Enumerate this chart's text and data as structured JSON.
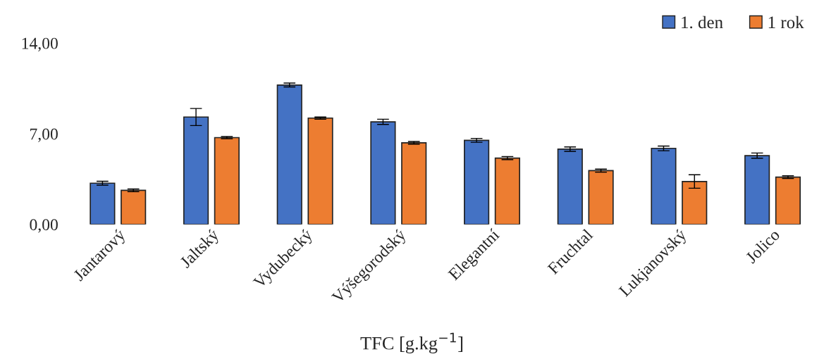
{
  "chart_data": {
    "type": "bar",
    "xlabel": "TFC [g.kg$^{−1}$]",
    "categories": [
      "Jantarový",
      "Jaltský",
      "Vydubecký",
      "Výšegorodský",
      "Elegantní",
      "Fruchtal",
      "Lukjanovský",
      "Jolico"
    ],
    "series": [
      {
        "name": "1. den",
        "color": "#4472c4",
        "values": [
          3.18,
          8.29,
          10.76,
          7.92,
          6.49,
          5.81,
          5.87,
          5.31
        ],
        "errors": [
          0.15,
          0.66,
          0.15,
          0.2,
          0.15,
          0.17,
          0.18,
          0.2
        ]
      },
      {
        "name": "1 rok",
        "color": "#ed7d31",
        "values": [
          2.63,
          6.7,
          8.21,
          6.3,
          5.12,
          4.15,
          3.31,
          3.65
        ],
        "errors": [
          0.1,
          0.08,
          0.08,
          0.1,
          0.12,
          0.12,
          0.52,
          0.1
        ]
      }
    ],
    "ylim": [
      0,
      14
    ],
    "yticks": [
      {
        "value": 0,
        "label": "0,00"
      },
      {
        "value": 7,
        "label": "7,00"
      },
      {
        "value": 14,
        "label": "14,00"
      }
    ],
    "legend": "top right",
    "grid": false
  }
}
